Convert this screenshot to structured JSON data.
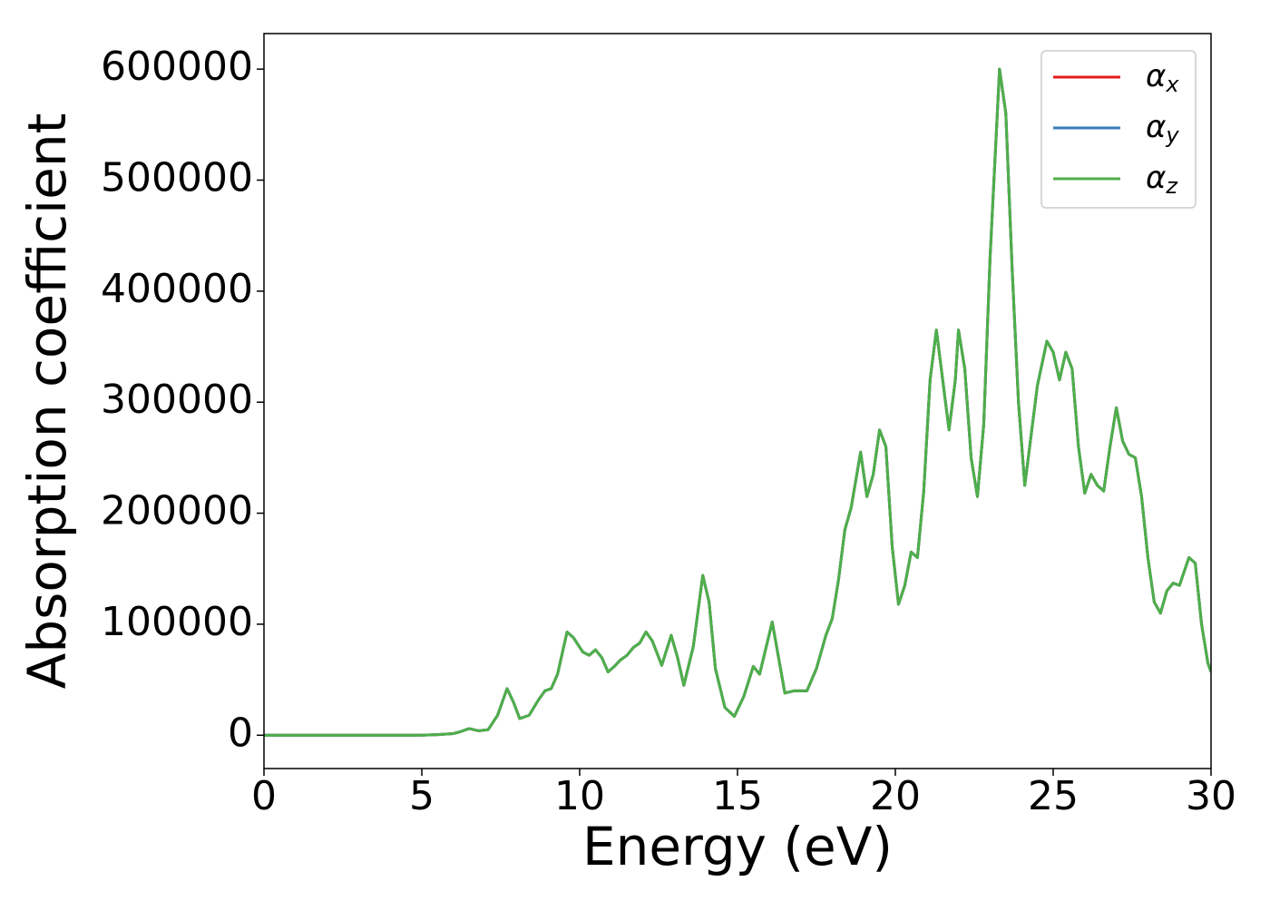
{
  "chart_data": {
    "type": "line",
    "xlabel": "Energy (eV)",
    "ylabel": "Absorption coefficient",
    "x": [
      0,
      1,
      2,
      3,
      4,
      5,
      5.5,
      6,
      6.2,
      6.5,
      6.8,
      7.1,
      7.4,
      7.7,
      7.9,
      8.1,
      8.4,
      8.7,
      8.9,
      9.1,
      9.3,
      9.6,
      9.8,
      10.1,
      10.3,
      10.5,
      10.7,
      10.9,
      11.1,
      11.3,
      11.5,
      11.7,
      11.9,
      12.1,
      12.3,
      12.6,
      12.9,
      13.1,
      13.3,
      13.6,
      13.9,
      14.1,
      14.3,
      14.6,
      14.9,
      15.2,
      15.5,
      15.7,
      16.1,
      16.3,
      16.5,
      16.8,
      17.2,
      17.5,
      17.8,
      18.0,
      18.2,
      18.4,
      18.6,
      18.9,
      19.1,
      19.3,
      19.5,
      19.7,
      19.9,
      20.1,
      20.3,
      20.5,
      20.7,
      20.9,
      21.1,
      21.3,
      21.5,
      21.7,
      21.9,
      22.0,
      22.2,
      22.4,
      22.6,
      22.8,
      23.0,
      23.3,
      23.5,
      23.7,
      23.9,
      24.1,
      24.3,
      24.5,
      24.8,
      25.0,
      25.2,
      25.4,
      25.6,
      25.8,
      26.0,
      26.2,
      26.4,
      26.6,
      26.8,
      27.0,
      27.2,
      27.4,
      27.6,
      27.8,
      28.0,
      28.2,
      28.4,
      28.6,
      28.8,
      29.0,
      29.3,
      29.5,
      29.7,
      29.9,
      30
    ],
    "series": [
      {
        "name": "αx",
        "color": "#e41a1c",
        "values": [
          0,
          0,
          0,
          0,
          0,
          0,
          500,
          1500,
          3000,
          6000,
          4000,
          5000,
          18000,
          42000,
          30000,
          15000,
          18000,
          32000,
          40000,
          42000,
          55000,
          93000,
          88000,
          75000,
          72000,
          77000,
          70000,
          57000,
          62000,
          68000,
          72000,
          79000,
          83000,
          93000,
          85000,
          63000,
          90000,
          70000,
          45000,
          80000,
          144000,
          120000,
          60000,
          25000,
          17000,
          35000,
          62000,
          55000,
          102000,
          70000,
          38000,
          40000,
          40000,
          60000,
          90000,
          105000,
          140000,
          185000,
          205000,
          255000,
          215000,
          235000,
          275000,
          260000,
          170000,
          118000,
          135000,
          165000,
          160000,
          220000,
          320000,
          365000,
          320000,
          275000,
          320000,
          365000,
          330000,
          250000,
          215000,
          280000,
          430000,
          600000,
          560000,
          420000,
          300000,
          225000,
          270000,
          315000,
          355000,
          345000,
          320000,
          345000,
          330000,
          260000,
          218000,
          235000,
          225000,
          220000,
          260000,
          295000,
          265000,
          253000,
          250000,
          215000,
          160000,
          120000,
          110000,
          130000,
          137000,
          135000,
          160000,
          155000,
          100000,
          65000,
          57000
        ]
      },
      {
        "name": "αy",
        "color": "#377eb8",
        "values": [
          0,
          0,
          0,
          0,
          0,
          0,
          500,
          1500,
          3000,
          6000,
          4000,
          5000,
          18000,
          42000,
          30000,
          15000,
          18000,
          32000,
          40000,
          42000,
          55000,
          93000,
          88000,
          75000,
          72000,
          77000,
          70000,
          57000,
          62000,
          68000,
          72000,
          79000,
          83000,
          93000,
          85000,
          63000,
          90000,
          70000,
          45000,
          80000,
          144000,
          120000,
          60000,
          25000,
          17000,
          35000,
          62000,
          55000,
          102000,
          70000,
          38000,
          40000,
          40000,
          60000,
          90000,
          105000,
          140000,
          185000,
          205000,
          255000,
          215000,
          235000,
          275000,
          260000,
          170000,
          118000,
          135000,
          165000,
          160000,
          220000,
          320000,
          365000,
          320000,
          275000,
          320000,
          365000,
          330000,
          250000,
          215000,
          280000,
          430000,
          600000,
          560000,
          420000,
          300000,
          225000,
          270000,
          315000,
          355000,
          345000,
          320000,
          345000,
          330000,
          260000,
          218000,
          235000,
          225000,
          220000,
          260000,
          295000,
          265000,
          253000,
          250000,
          215000,
          160000,
          120000,
          110000,
          130000,
          137000,
          135000,
          160000,
          155000,
          100000,
          65000,
          57000
        ]
      },
      {
        "name": "αz",
        "color": "#4daf4a",
        "values": [
          0,
          0,
          0,
          0,
          0,
          0,
          500,
          1500,
          3000,
          6000,
          4000,
          5000,
          18000,
          42000,
          30000,
          15000,
          18000,
          32000,
          40000,
          42000,
          55000,
          93000,
          88000,
          75000,
          72000,
          77000,
          70000,
          57000,
          62000,
          68000,
          72000,
          79000,
          83000,
          93000,
          85000,
          63000,
          90000,
          70000,
          45000,
          80000,
          144000,
          120000,
          60000,
          25000,
          17000,
          35000,
          62000,
          55000,
          102000,
          70000,
          38000,
          40000,
          40000,
          60000,
          90000,
          105000,
          140000,
          185000,
          205000,
          255000,
          215000,
          235000,
          275000,
          260000,
          170000,
          118000,
          135000,
          165000,
          160000,
          220000,
          320000,
          365000,
          320000,
          275000,
          320000,
          365000,
          330000,
          250000,
          215000,
          280000,
          430000,
          600000,
          560000,
          420000,
          300000,
          225000,
          270000,
          315000,
          355000,
          345000,
          320000,
          345000,
          330000,
          260000,
          218000,
          235000,
          225000,
          220000,
          260000,
          295000,
          265000,
          253000,
          250000,
          215000,
          160000,
          120000,
          110000,
          130000,
          137000,
          135000,
          160000,
          155000,
          100000,
          65000,
          57000
        ]
      }
    ],
    "xlim": [
      0,
      30
    ],
    "xticks": [
      0,
      5,
      10,
      15,
      20,
      25,
      30
    ],
    "ylim": [
      -30000,
      632000
    ],
    "yticks": [
      0,
      100000,
      200000,
      300000,
      400000,
      500000,
      600000
    ],
    "grid": false,
    "legend": "upper right"
  }
}
